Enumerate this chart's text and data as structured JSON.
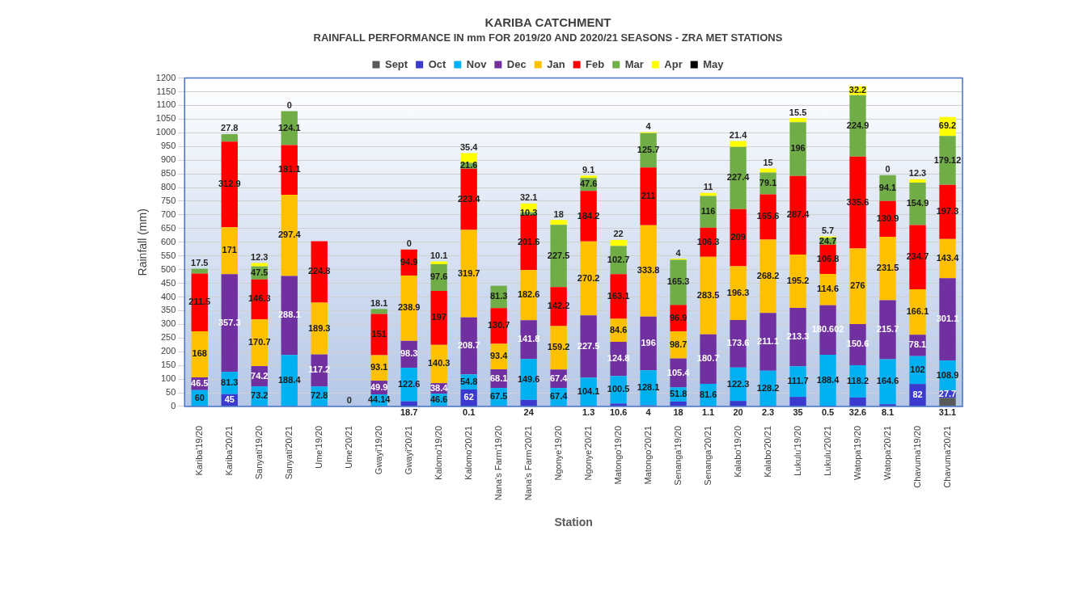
{
  "chart_data": {
    "type": "bar",
    "stacked": true,
    "title": "KARIBA CATCHMENT",
    "subtitle": "RAINFALL PERFORMANCE IN mm FOR 2019/20 AND 2020/21 SEASONS - ZRA MET STATIONS",
    "xlabel": "Station",
    "ylabel": "Rainfall (mm)",
    "categories": [
      "Kariba'19/20",
      "Kariba'20/21",
      "Sanyati'19/20",
      "Sanyati'20/21",
      "Ume'19/20",
      "Ume'20/21",
      "Gwayi'19/20",
      "Gwayi'20/21",
      "Kalomo'19/20",
      "Kalomo'20/21",
      "Nana's Farm'19/20",
      "Nana's Farm'20/21",
      "Ngonye'19/20",
      "Ngonye'20/21",
      "Matongo'19/20",
      "Matongo'20/21",
      "Senanga'19/20",
      "Senanga'20/21",
      "Kalabo'19/20",
      "Kalabo'20/21",
      "Lukulu'19/20",
      "Lukulu'20/21",
      "Watopa'19/20",
      "Watopa'20/21",
      "Chavuma'19/20",
      "Chavuma'20/21"
    ],
    "series": [
      {
        "name": "Sept",
        "color": "#595959",
        "values": [
          0,
          null,
          null,
          null,
          null,
          null,
          null,
          null,
          null,
          0.1,
          null,
          null,
          null,
          null,
          null,
          null,
          0,
          null,
          null,
          null,
          null,
          null,
          null,
          null,
          0,
          31.1
        ],
        "value_labels": [
          null,
          null,
          null,
          null,
          null,
          null,
          null,
          null,
          null,
          "0.1",
          null,
          null,
          null,
          null,
          null,
          null,
          null,
          null,
          null,
          null,
          null,
          null,
          null,
          null,
          null,
          "31.1"
        ]
      },
      {
        "name": "Oct",
        "color": "#3a3acf",
        "values": [
          null,
          45,
          0,
          null,
          0,
          0,
          0,
          18.7,
          0,
          62,
          0,
          24,
          0,
          1.3,
          10.6,
          4,
          18,
          1.1,
          20,
          2.3,
          35,
          0.5,
          32.6,
          8.1,
          82,
          27.7
        ],
        "value_labels": [
          null,
          "45",
          null,
          null,
          null,
          "0",
          null,
          "18.7",
          null,
          "62",
          null,
          "24",
          null,
          "1.3",
          "10.6",
          "4",
          "18",
          "1.1",
          "20",
          "2.3",
          "35",
          "0.5",
          "32.6",
          "8.1",
          "82",
          "27.7"
        ]
      },
      {
        "name": "Nov",
        "color": "#00b0f0",
        "values": [
          60,
          81.3,
          73.2,
          188.4,
          72.8,
          null,
          44.14,
          122.6,
          46.6,
          54.8,
          67.5,
          149.6,
          67.4,
          104.1,
          100.5,
          128.1,
          51.8,
          81.6,
          122.3,
          128.2,
          111.7,
          188.4,
          118.2,
          164.6,
          102,
          108.9
        ],
        "value_labels": [
          "60",
          "81.3",
          "73.2",
          "188.4",
          "72.8",
          null,
          "44.14",
          "122.6",
          "46.6",
          "54.8",
          "67.5",
          "149.6",
          "67.4",
          "104.1",
          "100.5",
          "128.1",
          "51.8",
          "81.6",
          "122.3",
          "128.2",
          "111.7",
          "188.4",
          "118.2",
          "164.6",
          "102",
          "108.9"
        ]
      },
      {
        "name": "Dec",
        "color": "#7030a0",
        "values": [
          46.5,
          357.3,
          74.2,
          288.1,
          117.2,
          null,
          49.9,
          98.3,
          38.4,
          208.7,
          68.1,
          141.8,
          67.4,
          227.5,
          124.8,
          196,
          105.4,
          180.7,
          173.6,
          211.1,
          213.3,
          180.602,
          150.6,
          215.7,
          78.1,
          301.1
        ],
        "value_labels": [
          "46.5",
          "357.3",
          "74.2",
          "288.1",
          "117.2",
          null,
          "49.9",
          "98.3",
          "38.4",
          "208.7",
          "68.1",
          "141.8",
          "67.4",
          "227.5",
          "124.8",
          "196",
          "105.4",
          "180.7",
          "173.6",
          "211.1",
          "213.3",
          "180.602",
          "150.6",
          "215.7",
          "78.1",
          "301.1"
        ]
      },
      {
        "name": "Jan",
        "color": "#ffc000",
        "values": [
          168,
          171,
          170.7,
          297.4,
          189.3,
          null,
          93.1,
          238.9,
          140.3,
          319.7,
          93.4,
          182.6,
          159.2,
          270.2,
          84.6,
          333.8,
          98.7,
          283.5,
          196.3,
          268.2,
          195.2,
          114.6,
          276,
          231.5,
          166.1,
          143.4
        ],
        "value_labels": [
          "168",
          "171",
          "170.7",
          "297.4",
          "189.3",
          null,
          "93.1",
          "238.9",
          "140.3",
          "319.7",
          "93.4",
          "182.6",
          "159.2",
          "270.2",
          "84.6",
          "333.8",
          "98.7",
          "283.5",
          "196.3",
          "268.2",
          "195.2",
          "114.6",
          "276",
          "231.5",
          "166.1",
          "143.4"
        ]
      },
      {
        "name": "Feb",
        "color": "#ff0000",
        "values": [
          211.5,
          312.9,
          146.3,
          181.1,
          224.8,
          null,
          151,
          94.9,
          197,
          223.4,
          130.7,
          201.6,
          142.2,
          184.2,
          163.1,
          211,
          96.9,
          106.3,
          209,
          165.6,
          287.4,
          106.8,
          335.6,
          130.9,
          234.7,
          197.3
        ],
        "value_labels": [
          "211.5",
          "312.9",
          "146.3",
          "181.1",
          "224.8",
          null,
          "151",
          "94.9",
          "197",
          "223.4",
          "130.7",
          "201.6",
          "142.2",
          "184.2",
          "163.1",
          "211",
          "96.9",
          "106.3",
          "209",
          "165.6",
          "287.4",
          "106.8",
          "335.6",
          "130.9",
          "234.7",
          "197.3"
        ]
      },
      {
        "name": "Mar",
        "color": "#70ad47",
        "values": [
          17.5,
          27.8,
          47.5,
          124.1,
          0,
          null,
          18.1,
          0,
          97.6,
          21.6,
          81.3,
          10.3,
          227.5,
          47.6,
          102.7,
          125.7,
          165.3,
          116,
          227.4,
          79.1,
          196,
          24.7,
          224.9,
          94.1,
          154.9,
          179.12
        ],
        "value_labels": [
          "17.5",
          "27.8",
          "47.5",
          "124.1",
          null,
          null,
          "18.1",
          "0",
          "97.6",
          "21.6",
          "81.3",
          "10.3",
          "227.5",
          "47.6",
          "102.7",
          "125.7",
          "165.3",
          "116",
          "227.4",
          "79.1",
          "196",
          "24.7",
          "224.9",
          "94.1",
          "154.9",
          "179.12"
        ]
      },
      {
        "name": "Apr",
        "color": "#ffff00",
        "values": [
          0,
          0,
          12.3,
          0,
          null,
          null,
          0,
          null,
          10.1,
          35.4,
          0,
          32.1,
          18,
          9.1,
          22,
          4,
          4,
          11,
          21.4,
          15,
          15.5,
          5.7,
          32.2,
          0,
          12.3,
          69.2
        ],
        "value_labels": [
          null,
          null,
          "12.3",
          "0",
          null,
          null,
          null,
          null,
          "10.1",
          "35.4",
          null,
          "32.1",
          "18",
          "9.1",
          "22",
          "4",
          "4",
          "11",
          "21.4",
          "15",
          "15.5",
          "5.7",
          "32.2",
          "0",
          "12.3",
          "69.2"
        ]
      },
      {
        "name": "May",
        "color": "#000000",
        "values": [
          null,
          null,
          null,
          null,
          null,
          null,
          null,
          null,
          null,
          null,
          null,
          null,
          null,
          null,
          null,
          null,
          null,
          null,
          null,
          null,
          null,
          null,
          null,
          null,
          null,
          null
        ]
      }
    ],
    "ylim": [
      0,
      1200
    ],
    "yticks": [
      0,
      50,
      100,
      150,
      200,
      250,
      300,
      350,
      400,
      450,
      500,
      550,
      600,
      650,
      700,
      750,
      800,
      850,
      900,
      950,
      1000,
      1050,
      1100,
      1150,
      1200
    ],
    "grid": "y",
    "legend": "top"
  }
}
